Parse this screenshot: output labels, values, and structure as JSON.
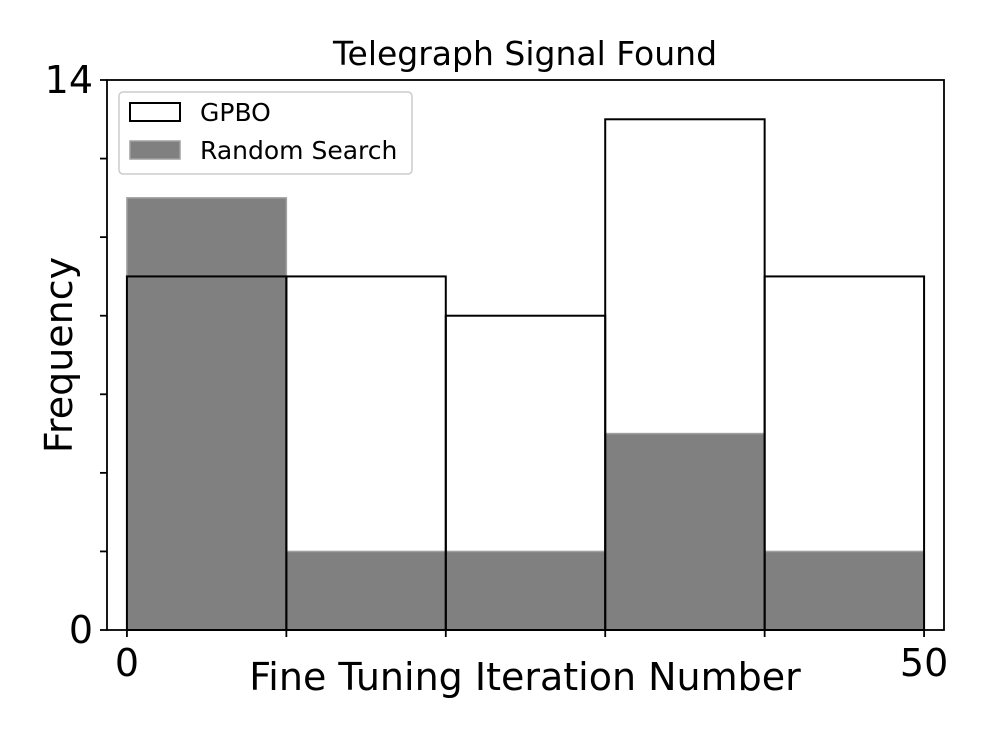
{
  "chart_data": {
    "type": "bar",
    "title": "Telegraph Signal Found",
    "xlabel": "Fine Tuning Iteration Number",
    "ylabel": "Frequency",
    "xlim": [
      -1.25,
      51.25
    ],
    "ylim": [
      0,
      14
    ],
    "x_tick_labels": [
      {
        "value": 0,
        "label": "0"
      },
      {
        "value": 50,
        "label": "50"
      }
    ],
    "x_tick_marks": [
      0,
      10,
      20,
      30,
      40,
      50
    ],
    "y_tick_labels": [
      {
        "value": 0,
        "label": "0"
      },
      {
        "value": 14,
        "label": "14"
      }
    ],
    "y_tick_marks": [
      0,
      2,
      4,
      6,
      8,
      10,
      12,
      14
    ],
    "bin_edges": [
      0,
      10,
      20,
      30,
      40,
      50
    ],
    "series": [
      {
        "name": "GPBO",
        "values": [
          9,
          9,
          8,
          13,
          9
        ],
        "fill": "#ffffff",
        "stroke": "#000000",
        "style": "outline"
      },
      {
        "name": "Random Search",
        "values": [
          11,
          2,
          2,
          5,
          2
        ],
        "fill": "#808080",
        "stroke": "#a0a0a0",
        "style": "filled"
      }
    ],
    "legend": {
      "position": "top-left"
    },
    "grid": false
  }
}
